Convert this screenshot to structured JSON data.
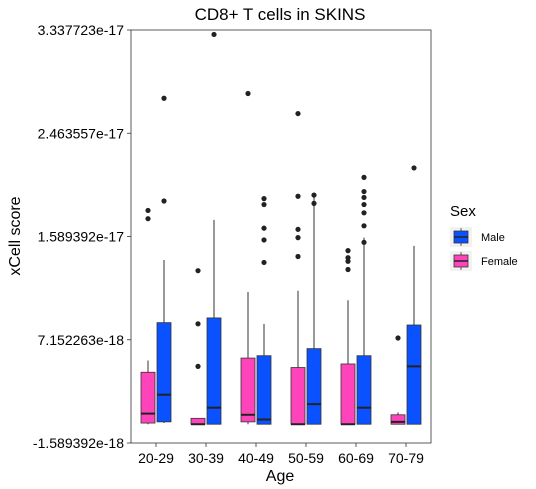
{
  "chart_data": {
    "type": "boxplot",
    "title": "CD8+ T cells in SKINS",
    "xlabel": "Age",
    "ylabel": "xCell score",
    "categories": [
      "20-29",
      "30-39",
      "40-49",
      "50-59",
      "60-69",
      "70-79"
    ],
    "y_ticks": [
      -1.589392e-18,
      7.152263e-18,
      1.589392e-17,
      2.463557e-17,
      3.337723e-17
    ],
    "y_tick_labels": [
      "-1.589392e-18",
      "7.152263e-18",
      "1.589392e-17",
      "2.463557e-17",
      "3.337723e-17"
    ],
    "ylim": [
      -1.589392e-18,
      3.337723e-17
    ],
    "grid": false,
    "legend": {
      "title": "Sex",
      "placement": "right",
      "order": [
        "Male",
        "Female"
      ]
    },
    "series": [
      {
        "name": "Female",
        "color": "#ff44bb",
        "boxes": [
          {
            "q1": 1e-19,
            "median": 9e-19,
            "q3": 4.4e-18,
            "whisker_low": 0.0,
            "whisker_high": 5.4e-18,
            "outliers": [
              1.74e-17,
              1.81e-17
            ]
          },
          {
            "q1": 0.0,
            "median": 0.0,
            "q3": 5e-19,
            "whisker_low": 0.0,
            "whisker_high": 5e-19,
            "outliers": [
              4.9e-18,
              8.5e-18,
              1.3e-17
            ]
          },
          {
            "q1": 2e-19,
            "median": 8e-19,
            "q3": 5.6e-18,
            "whisker_low": 0.0,
            "whisker_high": 1.12e-17,
            "outliers": [
              2.8e-17
            ]
          },
          {
            "q1": 0.0,
            "median": 0.0,
            "q3": 4.8e-18,
            "whisker_low": 0.0,
            "whisker_high": 1.13e-17,
            "outliers": [
              1.42e-17,
              1.58e-17,
              1.65e-17,
              1.93e-17,
              2.63e-17
            ]
          },
          {
            "q1": 0.0,
            "median": 0.0,
            "q3": 5.1e-18,
            "whisker_low": 0.0,
            "whisker_high": 1.05e-17,
            "outliers": [
              1.31e-17,
              1.38e-17,
              1.41e-17,
              1.47e-17
            ]
          },
          {
            "q1": 0.0,
            "median": 2e-19,
            "q3": 8e-19,
            "whisker_low": 0.0,
            "whisker_high": 1e-18,
            "outliers": [
              7.3e-18
            ]
          }
        ]
      },
      {
        "name": "Male",
        "color": "#0a52ff",
        "boxes": [
          {
            "q1": 2e-19,
            "median": 2.5e-18,
            "q3": 8.6e-18,
            "whisker_low": 1e-19,
            "whisker_high": 1.39e-17,
            "outliers": [
              1.89e-17,
              2.76e-17
            ]
          },
          {
            "q1": 0.0,
            "median": 1.4e-18,
            "q3": 9e-18,
            "whisker_low": 0.0,
            "whisker_high": 1.73e-17,
            "outliers": [
              3.3e-17
            ]
          },
          {
            "q1": 0.0,
            "median": 4e-19,
            "q3": 5.8e-18,
            "whisker_low": 0.0,
            "whisker_high": 8.5e-18,
            "outliers": [
              1.37e-17,
              1.56e-17,
              1.66e-17,
              1.86e-17,
              1.91e-17
            ]
          },
          {
            "q1": 0.0,
            "median": 1.7e-18,
            "q3": 6.4e-18,
            "whisker_low": 0.0,
            "whisker_high": 1.96e-17,
            "outliers": [
              1.87e-17,
              1.94e-17
            ]
          },
          {
            "q1": 0.0,
            "median": 1.4e-18,
            "q3": 5.8e-18,
            "whisker_low": 0.0,
            "whisker_high": 1.58e-17,
            "outliers": [
              1.54e-17,
              1.68e-17,
              1.79e-17,
              1.86e-17,
              1.92e-17,
              1.97e-17,
              2.09e-17
            ]
          },
          {
            "q1": 0.0,
            "median": 4.9e-18,
            "q3": 8.4e-18,
            "whisker_low": 0.0,
            "whisker_high": 1.51e-17,
            "outliers": [
              2.17e-17
            ]
          }
        ]
      }
    ]
  }
}
